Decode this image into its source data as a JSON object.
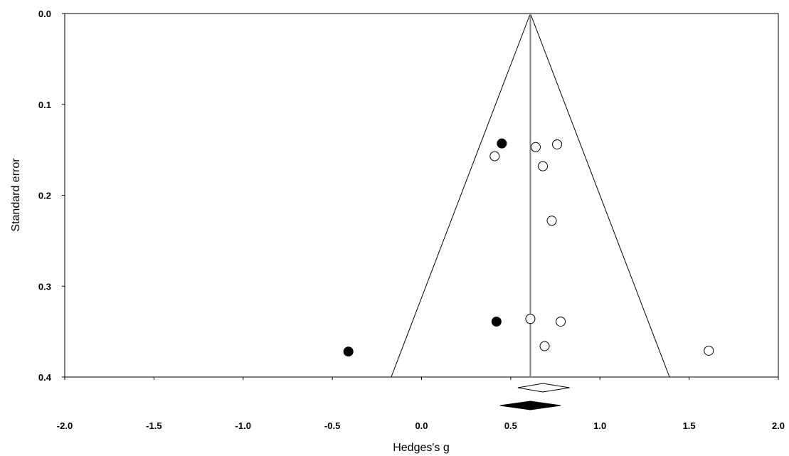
{
  "chart_data": {
    "type": "scatter",
    "title": "",
    "xlabel": "Hedges's g",
    "ylabel": "Standard error",
    "xlim": [
      -2.0,
      2.0
    ],
    "ylim": [
      0.0,
      0.4
    ],
    "y_inverted": true,
    "grid": false,
    "legend": "none",
    "x_ticks": [
      "-2.0",
      "-1.5",
      "-1.0",
      "-0.5",
      "0.0",
      "0.5",
      "1.0",
      "1.5",
      "2.0"
    ],
    "y_ticks": [
      "0.0",
      "0.1",
      "0.2",
      "0.3",
      "0.4"
    ],
    "pooled_effect": 0.61,
    "funnel": {
      "apex_x": 0.61,
      "apex_se": 0.0,
      "left_x_at_bottom": -0.17,
      "right_x_at_bottom": 1.39,
      "se_at_bottom": 0.4
    },
    "series": [
      {
        "marker": "open-circle",
        "points": [
          {
            "x": 0.41,
            "y": 0.157
          },
          {
            "x": 0.64,
            "y": 0.147
          },
          {
            "x": 0.76,
            "y": 0.144
          },
          {
            "x": 0.68,
            "y": 0.168
          },
          {
            "x": 0.73,
            "y": 0.228
          },
          {
            "x": 0.61,
            "y": 0.336
          },
          {
            "x": 0.78,
            "y": 0.339
          },
          {
            "x": 0.69,
            "y": 0.366
          },
          {
            "x": 1.61,
            "y": 0.371
          }
        ]
      },
      {
        "marker": "filled-circle",
        "points": [
          {
            "x": 0.45,
            "y": 0.143
          },
          {
            "x": 0.42,
            "y": 0.339
          },
          {
            "x": -0.41,
            "y": 0.372
          }
        ]
      }
    ],
    "summary_diamonds": [
      {
        "marker": "open-diamond",
        "center": 0.68,
        "low": 0.54,
        "high": 0.83
      },
      {
        "marker": "filled-diamond",
        "center": 0.61,
        "low": 0.44,
        "high": 0.78
      }
    ],
    "colors": {
      "axis": "#000000",
      "pooled_line": "#808080",
      "filled": "#000000",
      "open": "#ffffff"
    }
  }
}
